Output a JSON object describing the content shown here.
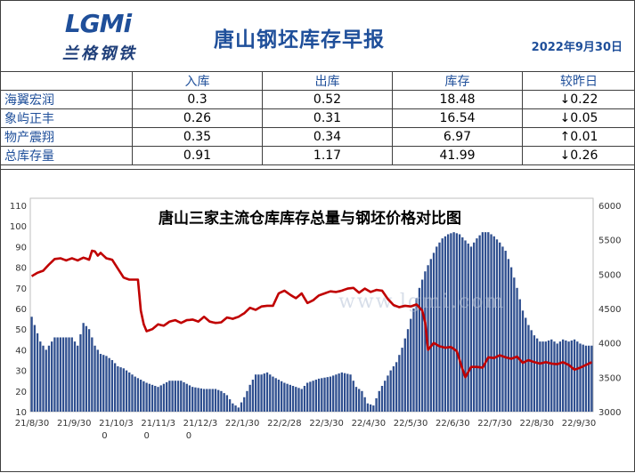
{
  "header": {
    "logo_text": "LGMi",
    "logo_subtext": "兰格钢铁",
    "title": "唐山钢坯库存早报",
    "date": "2022年9月30日"
  },
  "table": {
    "columns": [
      "",
      "入库",
      "出库",
      "库存",
      "较昨日"
    ],
    "rows": [
      {
        "name": "海翼宏润",
        "in": "0.3",
        "out": "0.52",
        "stock": "18.48",
        "change": "↓0.22",
        "dir": "down"
      },
      {
        "name": "象屿正丰",
        "in": "0.26",
        "out": "0.31",
        "stock": "16.54",
        "change": "↓0.05",
        "dir": "down"
      },
      {
        "name": "物产震翔",
        "in": "0.35",
        "out": "0.34",
        "stock": "6.97",
        "change": "↑0.01",
        "dir": "up"
      },
      {
        "name": "总库存量",
        "in": "0.91",
        "out": "1.17",
        "stock": "41.99",
        "change": "↓0.26",
        "dir": "down"
      }
    ]
  },
  "colors": {
    "bars": "#2f4f8f",
    "line": "#c00000",
    "title": "#1f4f9a",
    "down": "#2e9d3e",
    "up": "#e0201c"
  },
  "chart_data": {
    "type": "bar",
    "title": "唐山三家主流仓库库存总量与钢坯价格对比图",
    "watermark": "www.lgmi.com",
    "x_tick_labels": [
      "21/8/30",
      "21/9/30",
      "21/10/30",
      "21/11/30",
      "21/12/30",
      "22/1/30",
      "22/2/28",
      "22/3/30",
      "22/4/30",
      "22/5/30",
      "22/6/30",
      "22/7/30",
      "22/8/30",
      "22/9/30"
    ],
    "y_left": {
      "min": 10,
      "max": 110,
      "ticks": [
        10,
        20,
        30,
        40,
        50,
        60,
        70,
        80,
        90,
        100,
        110
      ]
    },
    "y_right": {
      "min": 3000,
      "max": 6000,
      "ticks": [
        3000,
        3500,
        4000,
        4500,
        5000,
        5500,
        6000
      ]
    },
    "series": [
      {
        "kind": "bar",
        "axis": "left",
        "knots": [
          [
            0,
            56
          ],
          [
            3,
            44
          ],
          [
            5,
            40
          ],
          [
            8,
            46
          ],
          [
            14,
            46
          ],
          [
            16,
            42
          ],
          [
            18,
            53
          ],
          [
            20,
            50
          ],
          [
            22,
            42
          ],
          [
            24,
            38
          ],
          [
            26,
            37
          ],
          [
            28,
            35
          ],
          [
            30,
            32
          ],
          [
            32,
            31
          ],
          [
            36,
            27
          ],
          [
            40,
            24
          ],
          [
            44,
            22
          ],
          [
            48,
            25
          ],
          [
            52,
            25
          ],
          [
            56,
            22
          ],
          [
            60,
            21
          ],
          [
            64,
            21
          ],
          [
            66,
            20
          ],
          [
            68,
            18
          ],
          [
            70,
            14
          ],
          [
            72,
            12
          ],
          [
            74,
            17
          ],
          [
            76,
            23
          ],
          [
            78,
            28
          ],
          [
            80,
            28
          ],
          [
            82,
            29
          ],
          [
            84,
            27
          ],
          [
            88,
            24
          ],
          [
            92,
            22
          ],
          [
            94,
            21
          ],
          [
            96,
            24
          ],
          [
            100,
            26
          ],
          [
            104,
            27
          ],
          [
            108,
            29
          ],
          [
            111,
            28
          ],
          [
            113,
            22
          ],
          [
            115,
            20
          ],
          [
            117,
            14
          ],
          [
            119,
            13
          ],
          [
            121,
            20
          ],
          [
            123,
            25
          ],
          [
            125,
            30
          ],
          [
            127,
            34
          ],
          [
            129,
            41
          ],
          [
            131,
            50
          ],
          [
            133,
            60
          ],
          [
            135,
            70
          ],
          [
            137,
            78
          ],
          [
            139,
            84
          ],
          [
            141,
            90
          ],
          [
            143,
            94
          ],
          [
            145,
            96
          ],
          [
            147,
            97
          ],
          [
            149,
            96
          ],
          [
            151,
            93
          ],
          [
            153,
            90
          ],
          [
            155,
            94
          ],
          [
            157,
            97
          ],
          [
            159,
            97
          ],
          [
            161,
            95
          ],
          [
            163,
            92
          ],
          [
            165,
            88
          ],
          [
            167,
            80
          ],
          [
            169,
            70
          ],
          [
            171,
            59
          ],
          [
            173,
            52
          ],
          [
            175,
            47
          ],
          [
            177,
            44
          ],
          [
            179,
            44
          ],
          [
            181,
            45
          ],
          [
            183,
            43
          ],
          [
            185,
            45
          ],
          [
            187,
            44
          ],
          [
            189,
            45
          ],
          [
            191,
            43
          ],
          [
            193,
            42
          ],
          [
            195,
            42
          ]
        ]
      },
      {
        "kind": "line",
        "axis": "right",
        "knots": [
          [
            0,
            4970
          ],
          [
            2,
            5020
          ],
          [
            4,
            5050
          ],
          [
            6,
            5140
          ],
          [
            8,
            5220
          ],
          [
            10,
            5230
          ],
          [
            12,
            5200
          ],
          [
            14,
            5230
          ],
          [
            16,
            5200
          ],
          [
            18,
            5240
          ],
          [
            20,
            5210
          ],
          [
            21,
            5340
          ],
          [
            22,
            5330
          ],
          [
            23,
            5270
          ],
          [
            24,
            5310
          ],
          [
            26,
            5230
          ],
          [
            28,
            5210
          ],
          [
            30,
            5080
          ],
          [
            32,
            4950
          ],
          [
            34,
            4920
          ],
          [
            36,
            4920
          ],
          [
            37,
            4920
          ],
          [
            38,
            4470
          ],
          [
            39,
            4270
          ],
          [
            40,
            4170
          ],
          [
            42,
            4200
          ],
          [
            44,
            4270
          ],
          [
            46,
            4250
          ],
          [
            48,
            4310
          ],
          [
            50,
            4330
          ],
          [
            52,
            4290
          ],
          [
            54,
            4330
          ],
          [
            56,
            4340
          ],
          [
            58,
            4310
          ],
          [
            60,
            4380
          ],
          [
            62,
            4310
          ],
          [
            64,
            4290
          ],
          [
            66,
            4300
          ],
          [
            68,
            4370
          ],
          [
            70,
            4350
          ],
          [
            72,
            4380
          ],
          [
            74,
            4430
          ],
          [
            76,
            4510
          ],
          [
            78,
            4480
          ],
          [
            80,
            4530
          ],
          [
            82,
            4540
          ],
          [
            84,
            4540
          ],
          [
            86,
            4720
          ],
          [
            88,
            4760
          ],
          [
            90,
            4700
          ],
          [
            92,
            4650
          ],
          [
            94,
            4720
          ],
          [
            96,
            4580
          ],
          [
            98,
            4620
          ],
          [
            100,
            4690
          ],
          [
            102,
            4720
          ],
          [
            104,
            4750
          ],
          [
            106,
            4740
          ],
          [
            108,
            4760
          ],
          [
            110,
            4790
          ],
          [
            112,
            4800
          ],
          [
            114,
            4730
          ],
          [
            116,
            4790
          ],
          [
            118,
            4740
          ],
          [
            120,
            4770
          ],
          [
            122,
            4760
          ],
          [
            124,
            4640
          ],
          [
            126,
            4550
          ],
          [
            128,
            4520
          ],
          [
            130,
            4540
          ],
          [
            132,
            4530
          ],
          [
            134,
            4560
          ],
          [
            136,
            4470
          ],
          [
            137,
            4300
          ],
          [
            138,
            3900
          ],
          [
            140,
            4000
          ],
          [
            142,
            3950
          ],
          [
            144,
            3930
          ],
          [
            146,
            3940
          ],
          [
            148,
            3880
          ],
          [
            150,
            3620
          ],
          [
            151,
            3500
          ],
          [
            153,
            3650
          ],
          [
            155,
            3650
          ],
          [
            157,
            3640
          ],
          [
            159,
            3790
          ],
          [
            161,
            3780
          ],
          [
            163,
            3820
          ],
          [
            165,
            3790
          ],
          [
            167,
            3770
          ],
          [
            169,
            3800
          ],
          [
            171,
            3710
          ],
          [
            173,
            3750
          ],
          [
            175,
            3720
          ],
          [
            177,
            3700
          ],
          [
            179,
            3720
          ],
          [
            181,
            3700
          ],
          [
            183,
            3690
          ],
          [
            185,
            3720
          ],
          [
            187,
            3680
          ],
          [
            189,
            3610
          ],
          [
            191,
            3640
          ],
          [
            193,
            3680
          ],
          [
            195,
            3720
          ]
        ]
      }
    ]
  }
}
